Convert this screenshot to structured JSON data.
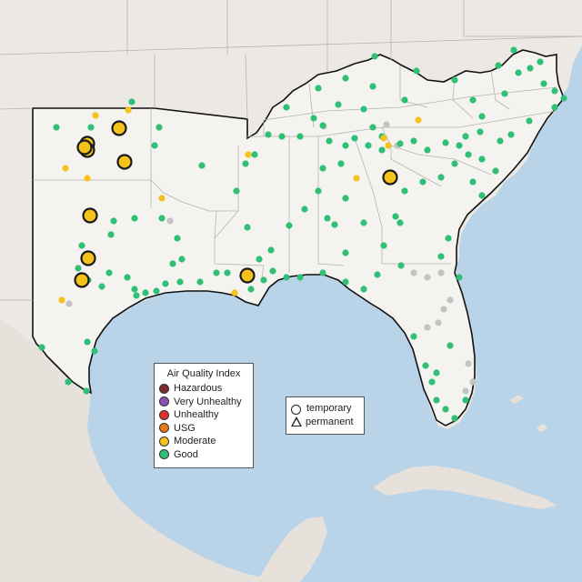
{
  "legend": {
    "title": "Air Quality Index",
    "categories": [
      {
        "label": "Hazardous",
        "color": "#7e2b2b"
      },
      {
        "label": "Very Unhealthy",
        "color": "#8f4fb0"
      },
      {
        "label": "Unhealthy",
        "color": "#e0332e"
      },
      {
        "label": "USG",
        "color": "#e87a1d"
      },
      {
        "label": "Moderate",
        "color": "#f4c21b"
      },
      {
        "label": "Good",
        "color": "#2fc076"
      }
    ]
  },
  "shape_legend": {
    "temporary": "temporary",
    "permanent": "permanent"
  },
  "colors": {
    "water": "#b9d3e8",
    "land": "#ece8e3",
    "highlight_land": "#f5f3f0",
    "no_data": "#c3c3c3"
  }
}
